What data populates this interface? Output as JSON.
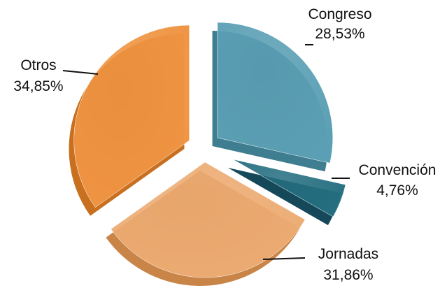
{
  "chart_data": {
    "type": "pie",
    "slices": [
      {
        "label": "Congreso",
        "value": 28.53,
        "value_label": "28,53%",
        "color": "#5b9fb4",
        "shade": "#3f7d90"
      },
      {
        "label": "Convención",
        "value": 4.76,
        "value_label": "4,76%",
        "color": "#246e80",
        "shade": "#15495a"
      },
      {
        "label": "Jornadas",
        "value": 31.86,
        "value_label": "31,86%",
        "color": "#ecab72",
        "shade": "#c98547"
      },
      {
        "label": "Otros",
        "value": 34.85,
        "value_label": "34,85%",
        "color": "#ef9442",
        "shade": "#c8701f"
      }
    ],
    "exploded": true,
    "style": "3d"
  }
}
